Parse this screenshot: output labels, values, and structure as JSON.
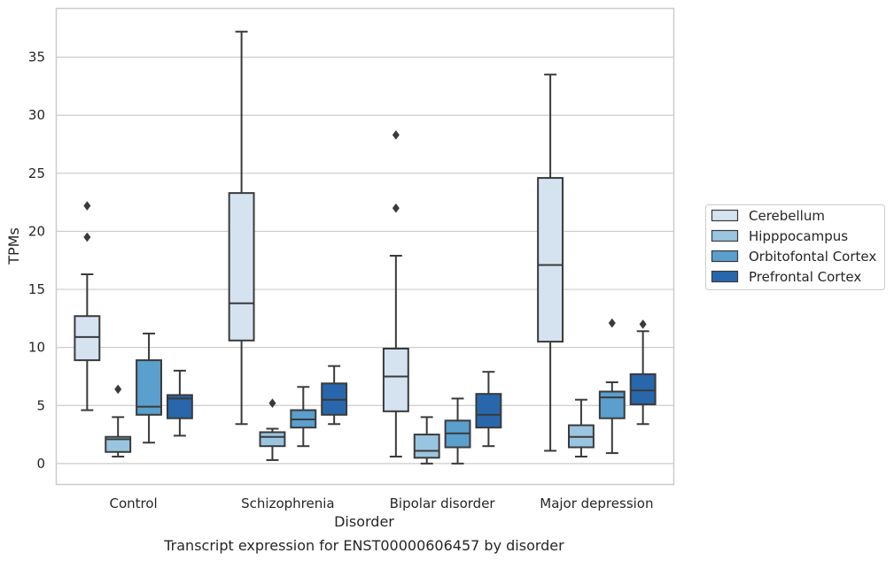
{
  "caption": "Transcript expression for ENST00000606457 by disorder",
  "chart_data": {
    "type": "box",
    "xlabel": "Disorder",
    "ylabel": "TPMs",
    "ylim": [
      -1.8,
      39.2
    ],
    "yticks": [
      0,
      5,
      10,
      15,
      20,
      25,
      30,
      35
    ],
    "grid": "horizontal",
    "legend_position": "right",
    "categories": [
      "Control",
      "Schizophrenia",
      "Bipolar disorder",
      "Major depression"
    ],
    "series": [
      {
        "name": "Cerebellum",
        "color": "#d5e3f1",
        "boxes": [
          {
            "whisker_low": 4.6,
            "q1": 8.9,
            "median": 10.9,
            "q3": 12.7,
            "whisker_high": 16.3,
            "outliers": [
              19.5,
              22.2
            ]
          },
          {
            "whisker_low": 3.4,
            "q1": 10.6,
            "median": 13.8,
            "q3": 23.3,
            "whisker_high": 37.2,
            "outliers": []
          },
          {
            "whisker_low": 0.6,
            "q1": 4.5,
            "median": 7.5,
            "q3": 9.9,
            "whisker_high": 17.9,
            "outliers": [
              22.0,
              28.3
            ]
          },
          {
            "whisker_low": 1.1,
            "q1": 10.5,
            "median": 17.1,
            "q3": 24.6,
            "whisker_high": 33.5,
            "outliers": []
          }
        ]
      },
      {
        "name": "Hipppocampus",
        "color": "#9ac5e0",
        "boxes": [
          {
            "whisker_low": 0.6,
            "q1": 1.0,
            "median": 2.1,
            "q3": 2.3,
            "whisker_high": 4.0,
            "outliers": [
              6.4
            ]
          },
          {
            "whisker_low": 0.3,
            "q1": 1.5,
            "median": 2.3,
            "q3": 2.7,
            "whisker_high": 3.0,
            "outliers": [
              5.2
            ]
          },
          {
            "whisker_low": 0.0,
            "q1": 0.5,
            "median": 1.1,
            "q3": 2.5,
            "whisker_high": 4.0,
            "outliers": []
          },
          {
            "whisker_low": 0.6,
            "q1": 1.4,
            "median": 2.3,
            "q3": 3.3,
            "whisker_high": 5.5,
            "outliers": []
          }
        ]
      },
      {
        "name": "Orbitofontal Cortex",
        "color": "#5a9fcd",
        "boxes": [
          {
            "whisker_low": 1.8,
            "q1": 4.2,
            "median": 4.9,
            "q3": 8.9,
            "whisker_high": 11.2,
            "outliers": []
          },
          {
            "whisker_low": 1.5,
            "q1": 3.1,
            "median": 3.8,
            "q3": 4.6,
            "whisker_high": 6.6,
            "outliers": []
          },
          {
            "whisker_low": 0.0,
            "q1": 1.4,
            "median": 2.6,
            "q3": 3.7,
            "whisker_high": 5.6,
            "outliers": []
          },
          {
            "whisker_low": 0.9,
            "q1": 3.9,
            "median": 5.7,
            "q3": 6.2,
            "whisker_high": 7.0,
            "outliers": [
              12.1
            ]
          }
        ]
      },
      {
        "name": "Prefrontal Cortex",
        "color": "#2867ac",
        "boxes": [
          {
            "whisker_low": 2.4,
            "q1": 3.9,
            "median": 5.6,
            "q3": 5.9,
            "whisker_high": 8.0,
            "outliers": []
          },
          {
            "whisker_low": 3.4,
            "q1": 4.2,
            "median": 5.5,
            "q3": 6.9,
            "whisker_high": 8.4,
            "outliers": []
          },
          {
            "whisker_low": 1.5,
            "q1": 3.1,
            "median": 4.2,
            "q3": 6.0,
            "whisker_high": 7.9,
            "outliers": []
          },
          {
            "whisker_low": 3.4,
            "q1": 5.1,
            "median": 6.3,
            "q3": 7.7,
            "whisker_high": 11.4,
            "outliers": [
              12.0
            ]
          }
        ]
      }
    ]
  }
}
